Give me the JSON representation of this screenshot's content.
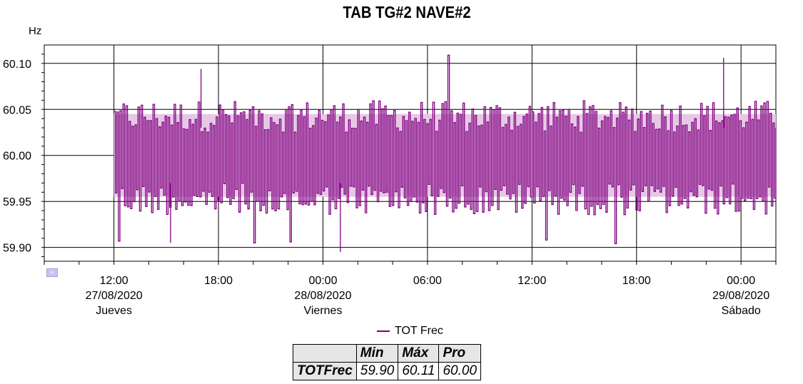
{
  "chart_data": {
    "type": "line",
    "title": "TAB TG#2 NAVE#2",
    "ylabel": "Hz",
    "ylim": [
      59.885,
      60.12
    ],
    "yticks": [
      "60.10",
      "60.05",
      "60.00",
      "59.95",
      "59.90"
    ],
    "ytick_values": [
      60.1,
      60.05,
      60.0,
      59.95,
      59.9
    ],
    "x_range_hours": [
      "2020-08-27 08:00",
      "2020-08-29 02:00"
    ],
    "xticks": [
      {
        "time": "2020-08-27 12:00",
        "label1": "12:00",
        "label2": "27/08/2020",
        "label3": "Jueves"
      },
      {
        "time": "2020-08-27 18:00",
        "label1": "18:00",
        "label2": "",
        "label3": ""
      },
      {
        "time": "2020-08-28 00:00",
        "label1": "00:00",
        "label2": "28/08/2020",
        "label3": "Viernes"
      },
      {
        "time": "2020-08-28 06:00",
        "label1": "06:00",
        "label2": "",
        "label3": ""
      },
      {
        "time": "2020-08-28 12:00",
        "label1": "12:00",
        "label2": "",
        "label3": ""
      },
      {
        "time": "2020-08-28 18:00",
        "label1": "18:00",
        "label2": "",
        "label3": ""
      },
      {
        "time": "2020-08-29 00:00",
        "label1": "00:00",
        "label2": "29/08/2020",
        "label3": "Sábado"
      }
    ],
    "grid": true,
    "legend_position": "bottom-center",
    "series": [
      {
        "name": "TOT Frec",
        "color": "#800080",
        "band_color": "#e6c8e6",
        "data_start": "2020-08-27 12:00",
        "data_end": "2020-08-29 02:00",
        "band_upper": 60.045,
        "band_lower": 59.955,
        "min": 59.9,
        "max": 60.11,
        "avg": 60.0
      }
    ]
  },
  "legend": {
    "label": "TOT Frec"
  },
  "stats_table": {
    "headers": [
      "Min",
      "Máx",
      "Pro"
    ],
    "row_label": "TOTFrec",
    "values": [
      "59.90",
      "60.11",
      "60.00"
    ]
  }
}
